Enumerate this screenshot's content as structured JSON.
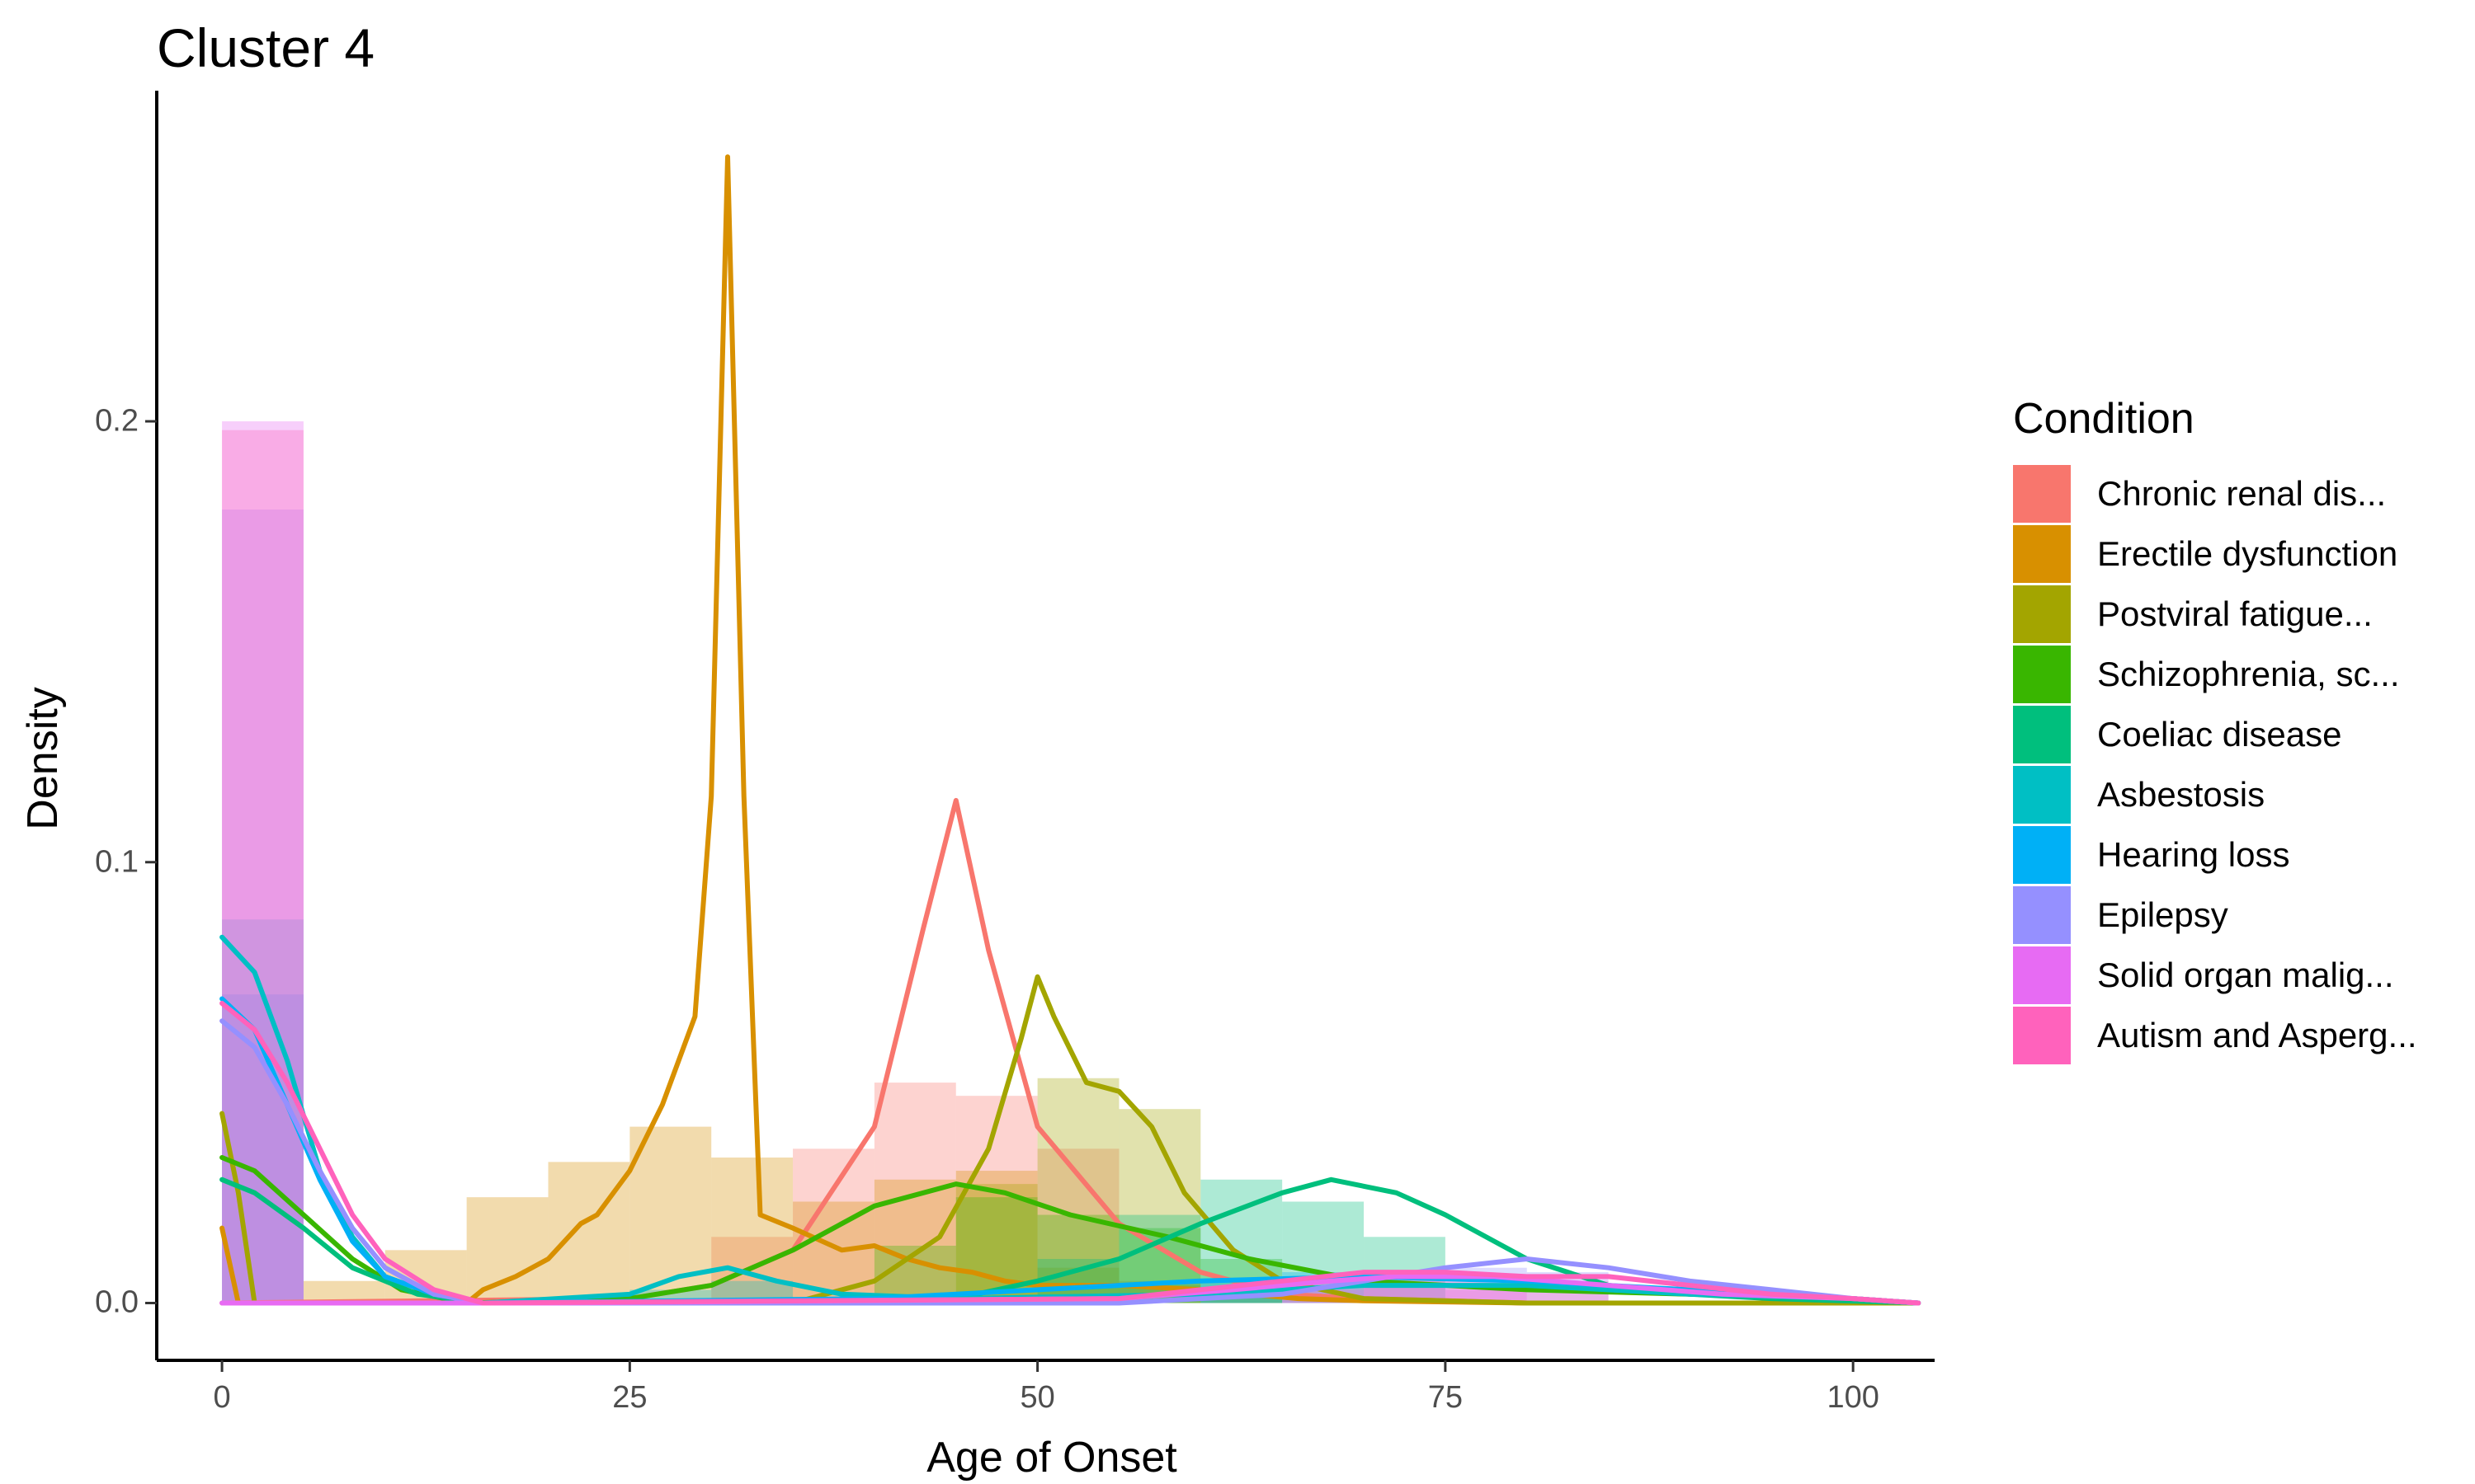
{
  "chart_data": {
    "type": "histogram+density",
    "title": "Cluster 4",
    "xlabel": "Age of Onset",
    "ylabel": "Density",
    "xlim": [
      -4,
      105
    ],
    "ylim": [
      -0.013,
      0.275
    ],
    "x_ticks": [
      0,
      25,
      50,
      75,
      100
    ],
    "x_tick_labels": [
      "0",
      "25",
      "50",
      "75",
      "100"
    ],
    "y_ticks": [
      0.0,
      0.1,
      0.2
    ],
    "y_tick_labels": [
      "0.0",
      "0.1",
      "0.2"
    ],
    "legend_title": "Condition",
    "legend_position": "right",
    "bin_width": 5,
    "series": [
      {
        "name": "Chronic renal dis...",
        "color": "#F8766D",
        "hist": [
          [
            30,
            0.015
          ],
          [
            35,
            0.035
          ],
          [
            40,
            0.05
          ],
          [
            45,
            0.047
          ],
          [
            50,
            0.035
          ],
          [
            55,
            0.005
          ],
          [
            60,
            0.002
          ]
        ],
        "density": [
          [
            0,
            0
          ],
          [
            25,
            0.001
          ],
          [
            30,
            0.004
          ],
          [
            35,
            0.012
          ],
          [
            40,
            0.04
          ],
          [
            43,
            0.085
          ],
          [
            45,
            0.114
          ],
          [
            47,
            0.08
          ],
          [
            50,
            0.04
          ],
          [
            55,
            0.018
          ],
          [
            60,
            0.007
          ],
          [
            65,
            0.002
          ],
          [
            70,
            0.001
          ],
          [
            80,
            0
          ],
          [
            104,
            0
          ]
        ]
      },
      {
        "name": "Erectile dysfunction",
        "color": "#D89000",
        "hist": [
          [
            5,
            0.005
          ],
          [
            10,
            0.012
          ],
          [
            15,
            0.024
          ],
          [
            20,
            0.032
          ],
          [
            25,
            0.04
          ],
          [
            30,
            0.033
          ],
          [
            35,
            0.023
          ],
          [
            40,
            0.028
          ],
          [
            45,
            0.03
          ],
          [
            50,
            0.008
          ],
          [
            55,
            0.004
          ],
          [
            60,
            0.003
          ]
        ],
        "density": [
          [
            0,
            0.017
          ],
          [
            1,
            0
          ],
          [
            15,
            0
          ],
          [
            16,
            0.003
          ],
          [
            18,
            0.006
          ],
          [
            20,
            0.01
          ],
          [
            22,
            0.018
          ],
          [
            23,
            0.02
          ],
          [
            25,
            0.03
          ],
          [
            27,
            0.045
          ],
          [
            29,
            0.065
          ],
          [
            30,
            0.115
          ],
          [
            31,
            0.26
          ],
          [
            32,
            0.115
          ],
          [
            33,
            0.02
          ],
          [
            35,
            0.017
          ],
          [
            38,
            0.012
          ],
          [
            40,
            0.013
          ],
          [
            42,
            0.01
          ],
          [
            44,
            0.008
          ],
          [
            46,
            0.007
          ],
          [
            48,
            0.005
          ],
          [
            50,
            0.004
          ],
          [
            55,
            0.004
          ],
          [
            60,
            0.003
          ],
          [
            66,
            0.001
          ],
          [
            70,
            0.0005
          ],
          [
            80,
            0
          ],
          [
            104,
            0
          ]
        ]
      },
      {
        "name": "Postviral fatigue...",
        "color": "#A3A500",
        "hist": [
          [
            45,
            0.027
          ],
          [
            50,
            0.051
          ],
          [
            55,
            0.044
          ]
        ],
        "density": [
          [
            0,
            0.043
          ],
          [
            1,
            0.025
          ],
          [
            2,
            0
          ],
          [
            35,
            0
          ],
          [
            40,
            0.005
          ],
          [
            44,
            0.015
          ],
          [
            47,
            0.035
          ],
          [
            49,
            0.06
          ],
          [
            50,
            0.074
          ],
          [
            51,
            0.065
          ],
          [
            53,
            0.05
          ],
          [
            55,
            0.048
          ],
          [
            57,
            0.04
          ],
          [
            59,
            0.025
          ],
          [
            62,
            0.012
          ],
          [
            65,
            0.005
          ],
          [
            70,
            0.001
          ],
          [
            80,
            0
          ],
          [
            104,
            0
          ]
        ]
      },
      {
        "name": "Schizophrenia, sc...",
        "color": "#39B600",
        "hist": [
          [
            40,
            0.013
          ],
          [
            45,
            0.024
          ],
          [
            50,
            0.02
          ],
          [
            55,
            0.017
          ],
          [
            60,
            0.01
          ]
        ],
        "density": [
          [
            0,
            0.033
          ],
          [
            2,
            0.03
          ],
          [
            5,
            0.02
          ],
          [
            8,
            0.01
          ],
          [
            11,
            0.003
          ],
          [
            15,
            0
          ],
          [
            25,
            0.001
          ],
          [
            30,
            0.004
          ],
          [
            35,
            0.012
          ],
          [
            40,
            0.022
          ],
          [
            45,
            0.027
          ],
          [
            48,
            0.025
          ],
          [
            52,
            0.02
          ],
          [
            58,
            0.015
          ],
          [
            63,
            0.01
          ],
          [
            70,
            0.005
          ],
          [
            80,
            0.003
          ],
          [
            90,
            0.002
          ],
          [
            100,
            0.001
          ],
          [
            104,
            0
          ]
        ]
      },
      {
        "name": "Coeliac disease",
        "color": "#00BF7D",
        "hist": [
          [
            50,
            0.01
          ],
          [
            55,
            0.02
          ],
          [
            60,
            0.028
          ],
          [
            65,
            0.023
          ],
          [
            70,
            0.015
          ]
        ],
        "density": [
          [
            0,
            0.028
          ],
          [
            2,
            0.025
          ],
          [
            5,
            0.017
          ],
          [
            8,
            0.008
          ],
          [
            12,
            0.002
          ],
          [
            16,
            0
          ],
          [
            45,
            0.001
          ],
          [
            50,
            0.005
          ],
          [
            55,
            0.01
          ],
          [
            60,
            0.018
          ],
          [
            65,
            0.025
          ],
          [
            68,
            0.028
          ],
          [
            72,
            0.025
          ],
          [
            75,
            0.02
          ],
          [
            80,
            0.01
          ],
          [
            85,
            0.004
          ],
          [
            90,
            0.002
          ],
          [
            95,
            0.001
          ],
          [
            104,
            0
          ]
        ]
      },
      {
        "name": "Asbestosis",
        "color": "#00BFC4",
        "hist": [
          [
            0,
            0.087
          ],
          [
            25,
            0.003
          ],
          [
            30,
            0.005
          ]
        ],
        "density": [
          [
            0,
            0.083
          ],
          [
            2,
            0.075
          ],
          [
            4,
            0.055
          ],
          [
            6,
            0.03
          ],
          [
            8,
            0.015
          ],
          [
            10,
            0.006
          ],
          [
            13,
            0.002
          ],
          [
            16,
            0
          ],
          [
            25,
            0.002
          ],
          [
            28,
            0.006
          ],
          [
            31,
            0.008
          ],
          [
            34,
            0.005
          ],
          [
            38,
            0.002
          ],
          [
            45,
            0.001
          ],
          [
            60,
            0.002
          ],
          [
            70,
            0.004
          ],
          [
            80,
            0.004
          ],
          [
            90,
            0.002
          ],
          [
            100,
            0.001
          ],
          [
            104,
            0
          ]
        ]
      },
      {
        "name": "Hearing loss",
        "color": "#00B0F6",
        "hist": [
          [
            0,
            0.07
          ],
          [
            60,
            0.005
          ],
          [
            65,
            0.007
          ]
        ],
        "density": [
          [
            0,
            0.069
          ],
          [
            2,
            0.062
          ],
          [
            4,
            0.045
          ],
          [
            6,
            0.028
          ],
          [
            8,
            0.014
          ],
          [
            10,
            0.006
          ],
          [
            13,
            0.002
          ],
          [
            16,
            0
          ],
          [
            40,
            0.001
          ],
          [
            50,
            0.003
          ],
          [
            60,
            0.005
          ],
          [
            70,
            0.006
          ],
          [
            80,
            0.005
          ],
          [
            90,
            0.003
          ],
          [
            100,
            0.001
          ],
          [
            104,
            0
          ]
        ]
      },
      {
        "name": "Epilepsy",
        "color": "#9590FF",
        "hist": [
          [
            0,
            0.18
          ],
          [
            70,
            0.006
          ],
          [
            75,
            0.008
          ],
          [
            80,
            0.007
          ]
        ],
        "density": [
          [
            0,
            0.064
          ],
          [
            2,
            0.058
          ],
          [
            4,
            0.045
          ],
          [
            6,
            0.03
          ],
          [
            8,
            0.017
          ],
          [
            10,
            0.008
          ],
          [
            13,
            0.002
          ],
          [
            16,
            0
          ],
          [
            55,
            0
          ],
          [
            65,
            0.002
          ],
          [
            70,
            0.005
          ],
          [
            75,
            0.008
          ],
          [
            80,
            0.01
          ],
          [
            85,
            0.008
          ],
          [
            90,
            0.005
          ],
          [
            95,
            0.003
          ],
          [
            100,
            0.001
          ],
          [
            104,
            0
          ]
        ]
      },
      {
        "name": "Solid organ malig...",
        "color": "#E76BF3",
        "hist": [
          [
            0,
            0.2
          ],
          [
            65,
            0.003
          ],
          [
            70,
            0.004
          ],
          [
            75,
            0.003
          ]
        ],
        "density": [
          [
            0,
            0
          ],
          [
            20,
            0
          ],
          [
            55,
            0.001
          ],
          [
            62,
            0.003
          ],
          [
            68,
            0.005
          ],
          [
            72,
            0.006
          ],
          [
            78,
            0.006
          ],
          [
            85,
            0.004
          ],
          [
            92,
            0.002
          ],
          [
            100,
            0.001
          ],
          [
            104,
            0
          ]
        ]
      },
      {
        "name": "Autism and Asperg...",
        "color": "#FF62BC",
        "hist": [
          [
            0,
            0.198
          ],
          [
            65,
            0.005
          ],
          [
            70,
            0.007
          ],
          [
            75,
            0.006
          ],
          [
            80,
            0.005
          ]
        ],
        "density": [
          [
            0,
            0.068
          ],
          [
            2,
            0.062
          ],
          [
            4,
            0.05
          ],
          [
            6,
            0.035
          ],
          [
            8,
            0.02
          ],
          [
            10,
            0.01
          ],
          [
            13,
            0.003
          ],
          [
            16,
            0
          ],
          [
            55,
            0.001
          ],
          [
            60,
            0.003
          ],
          [
            65,
            0.005
          ],
          [
            70,
            0.007
          ],
          [
            75,
            0.007
          ],
          [
            80,
            0.006
          ],
          [
            85,
            0.006
          ],
          [
            90,
            0.004
          ],
          [
            95,
            0.002
          ],
          [
            100,
            0.001
          ],
          [
            104,
            0
          ]
        ]
      }
    ]
  }
}
